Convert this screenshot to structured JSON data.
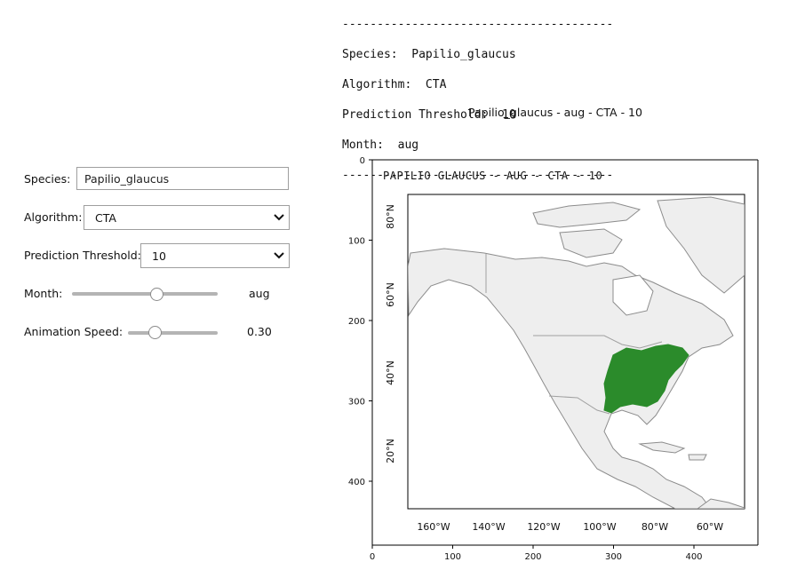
{
  "console": {
    "separator_top": "---------------------------------------",
    "species_line": "Species:  Papilio_glaucus",
    "algorithm_line": "Algorithm:  CTA",
    "threshold_line": "Prediction Threshold:  10",
    "month_line": "Month:  aug",
    "separator_bottom": "---------------------------------------"
  },
  "plot_caption": "Papilio_glaucus - aug - CTA - 10",
  "widgets": {
    "species": {
      "label": "Species:",
      "value": "Papilio_glaucus"
    },
    "algorithm": {
      "label": "Algorithm:",
      "value": "CTA"
    },
    "threshold": {
      "label": "Prediction Threshold:",
      "value": "10"
    },
    "month": {
      "label": "Month:",
      "value": "aug",
      "position": 0.58
    },
    "speed": {
      "label": "Animation Speed:",
      "value": "0.30",
      "position": 0.3
    }
  },
  "chart_data": {
    "type": "map-image",
    "image_axes": {
      "x_ticks": [
        "0",
        "100",
        "200",
        "300",
        "400"
      ],
      "y_ticks": [
        "0",
        "100",
        "200",
        "300",
        "400"
      ],
      "xlim": [
        0,
        480
      ],
      "ylim": [
        450,
        0
      ]
    },
    "map": {
      "title": "PAPILIO GLAUCUS - AUG - CTA - 10",
      "lon_labels": [
        "160°W",
        "140°W",
        "120°W",
        "100°W",
        "80°W",
        "60°W"
      ],
      "lat_labels": [
        "80°N",
        "60°N",
        "40°N",
        "20°N"
      ],
      "prediction_color": "#2b8b2b",
      "land_color": "#eeeeee",
      "coast_color": "#8c8c8c"
    }
  },
  "icons": {
    "dropdown": "chevron-down-icon"
  }
}
